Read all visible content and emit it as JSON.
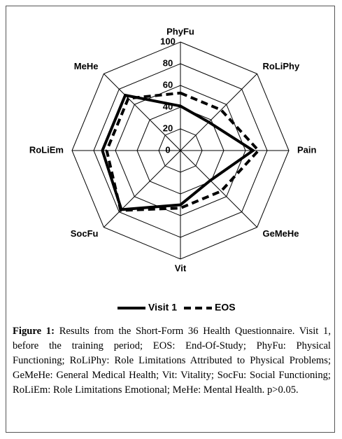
{
  "chart_data": {
    "type": "radar",
    "categories": [
      "PhyFu",
      "RoLiPhy",
      "Pain",
      "GeMeHe",
      "Vit",
      "SocFu",
      "RoLiEm",
      "MeHe"
    ],
    "series": [
      {
        "name": "Visit 1",
        "color": "#000000",
        "dash": false,
        "values": [
          41,
          37,
          67,
          39,
          50,
          77,
          72,
          72
        ]
      },
      {
        "name": "EOS",
        "color": "#000000",
        "dash": true,
        "values": [
          53,
          53,
          72,
          53,
          53,
          78,
          68,
          68
        ]
      }
    ],
    "rlim": [
      0,
      100
    ],
    "rticks": [
      0,
      20,
      40,
      60,
      80,
      100
    ],
    "grid": true,
    "legend": "bottom",
    "caption_label": "Figure 1:",
    "caption_text": "Results from the Short-Form 36 Health Questionnaire. Visit 1, before the training period; EOS: End-Of-Study; PhyFu: Physical Functioning; RoLiPhy: Role Limitations Attributed to Physical Problems; GeMeHe: General Medical Health; Vit: Vitality; SocFu: Social Functioning; RoLiEm: Role Limitations Emotional; MeHe: Mental Health. p>0.05."
  }
}
